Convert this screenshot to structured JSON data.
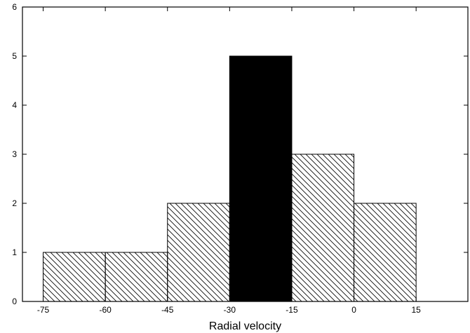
{
  "chart_data": {
    "type": "bar",
    "title": "",
    "xlabel": "Radial velocity",
    "ylabel": "",
    "xlim": [
      -80,
      27.5
    ],
    "ylim": [
      0,
      6
    ],
    "xticks": [
      -75,
      -60,
      -45,
      -30,
      -15,
      0,
      15
    ],
    "yticks": [
      0,
      1,
      2,
      3,
      4,
      5,
      6
    ],
    "bins": [
      {
        "x0": -75,
        "x1": -60,
        "value": 1,
        "fill": "hatched"
      },
      {
        "x0": -60,
        "x1": -45,
        "value": 1,
        "fill": "hatched"
      },
      {
        "x0": -45,
        "x1": -30,
        "value": 2,
        "fill": "hatched"
      },
      {
        "x0": -30,
        "x1": -15,
        "value": 5,
        "fill": "solid"
      },
      {
        "x0": -15,
        "x1": 0,
        "value": 3,
        "fill": "hatched"
      },
      {
        "x0": 0,
        "x1": 15,
        "value": 2,
        "fill": "hatched"
      }
    ],
    "grid": false,
    "colors": {
      "solid": "#000000",
      "hatch": "#000000",
      "background": "#ffffff"
    }
  }
}
